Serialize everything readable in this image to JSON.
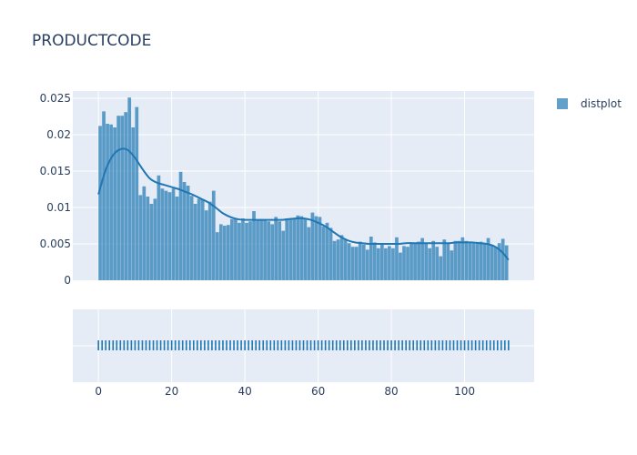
{
  "chart_data": {
    "type": "bar",
    "title": "PRODUCTCODE",
    "legend": {
      "position": "top-right",
      "entries": [
        "distplot"
      ]
    },
    "grid": true,
    "colors": {
      "bar": "#1f77b4",
      "plot_bg": "#e5ecf6",
      "grid": "#ffffff",
      "text": "#2a3f5f"
    },
    "x": {
      "range": [
        -7,
        119
      ],
      "ticks": [
        0,
        20,
        40,
        60,
        80,
        100
      ],
      "tick_labels": [
        "0",
        "20",
        "40",
        "60",
        "80",
        "100"
      ]
    },
    "y": {
      "range": [
        0,
        0.026
      ],
      "ticks": [
        0,
        0.005,
        0.01,
        0.015,
        0.02,
        0.025
      ],
      "tick_labels": [
        "0",
        "0.005",
        "0.01",
        "0.015",
        "0.02",
        "0.025"
      ]
    },
    "histogram": {
      "bin_start": 0,
      "bin_width": 1,
      "values": [
        0.0212,
        0.0232,
        0.0215,
        0.0214,
        0.021,
        0.0226,
        0.0226,
        0.0231,
        0.0251,
        0.021,
        0.0238,
        0.0117,
        0.0129,
        0.0115,
        0.0105,
        0.0112,
        0.0144,
        0.0126,
        0.0123,
        0.0121,
        0.0126,
        0.0115,
        0.0149,
        0.0135,
        0.013,
        0.0116,
        0.0105,
        0.0112,
        0.0111,
        0.0096,
        0.0108,
        0.0123,
        0.0066,
        0.0077,
        0.0075,
        0.0076,
        0.0084,
        0.0084,
        0.0079,
        0.0085,
        0.0079,
        0.0081,
        0.0095,
        0.0082,
        0.0084,
        0.0083,
        0.0081,
        0.0077,
        0.0087,
        0.0081,
        0.0068,
        0.0085,
        0.0084,
        0.0084,
        0.0089,
        0.0088,
        0.0084,
        0.0073,
        0.0093,
        0.0088,
        0.0087,
        0.0074,
        0.0079,
        0.0072,
        0.0054,
        0.0056,
        0.0062,
        0.0056,
        0.0051,
        0.0046,
        0.0046,
        0.0053,
        0.0049,
        0.0042,
        0.006,
        0.0052,
        0.0044,
        0.005,
        0.0044,
        0.0047,
        0.0044,
        0.0059,
        0.0038,
        0.0047,
        0.0046,
        0.0052,
        0.0051,
        0.0053,
        0.0058,
        0.005,
        0.0044,
        0.0054,
        0.0046,
        0.0033,
        0.0056,
        0.005,
        0.0041,
        0.0054,
        0.0054,
        0.0059,
        0.0054,
        0.0053,
        0.0051,
        0.0051,
        0.0053,
        0.005,
        0.0058,
        0.0048,
        0.0046,
        0.0051,
        0.0057,
        0.0048
      ]
    },
    "kde": {
      "name": "distplot",
      "x": [
        0,
        2,
        4,
        6,
        8,
        10,
        12,
        14,
        16,
        18,
        20,
        22,
        24,
        26,
        28,
        30,
        32,
        34,
        36,
        38,
        40,
        42,
        44,
        46,
        48,
        50,
        52,
        54,
        56,
        58,
        60,
        62,
        64,
        66,
        68,
        70,
        72,
        74,
        76,
        78,
        80,
        82,
        84,
        86,
        88,
        90,
        92,
        94,
        96,
        98,
        100,
        102,
        104,
        106,
        108,
        110,
        112
      ],
      "y": [
        0.0118,
        0.0152,
        0.0172,
        0.018,
        0.0179,
        0.0168,
        0.0153,
        0.014,
        0.0134,
        0.0131,
        0.0128,
        0.0125,
        0.0121,
        0.0117,
        0.0112,
        0.0107,
        0.01,
        0.0092,
        0.0087,
        0.0084,
        0.0083,
        0.0083,
        0.0083,
        0.0083,
        0.0083,
        0.0083,
        0.0084,
        0.0085,
        0.0085,
        0.0083,
        0.0079,
        0.0074,
        0.0067,
        0.006,
        0.0055,
        0.0052,
        0.0051,
        0.005,
        0.005,
        0.005,
        0.005,
        0.005,
        0.0051,
        0.0051,
        0.0051,
        0.0051,
        0.0051,
        0.0051,
        0.0051,
        0.0052,
        0.0052,
        0.0052,
        0.0051,
        0.005,
        0.0047,
        0.004,
        0.0028
      ]
    },
    "rug": {
      "x_start": 0,
      "x_end": 112,
      "step": 1
    }
  }
}
